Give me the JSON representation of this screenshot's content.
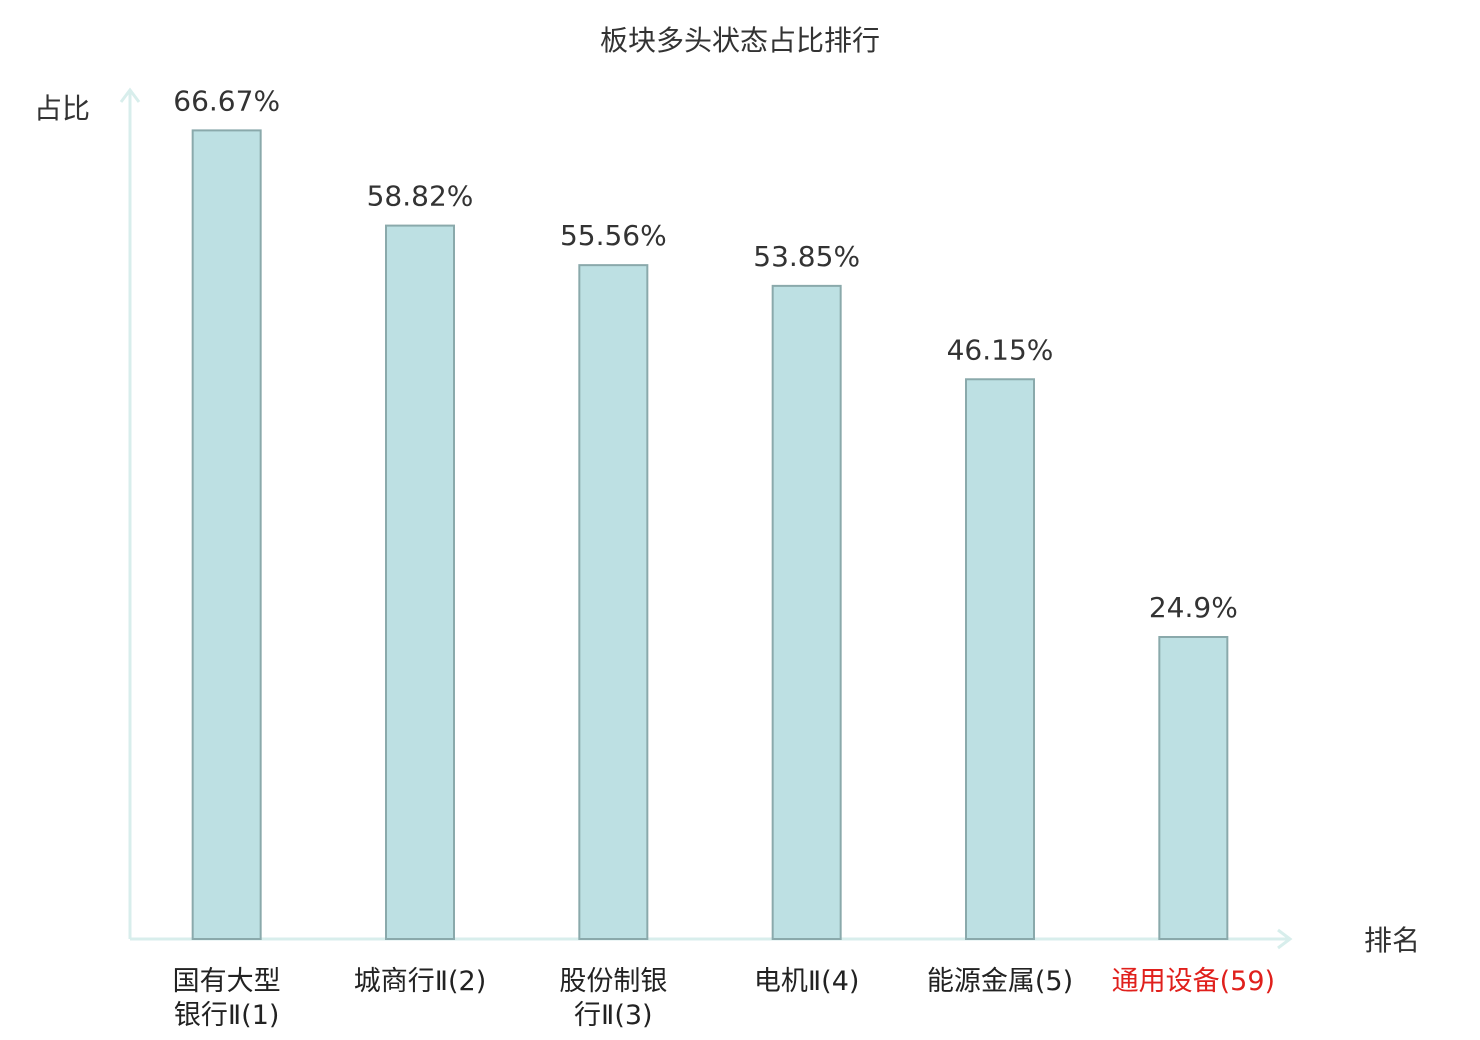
{
  "chart_data": {
    "type": "bar",
    "title": "板块多头状态占比排行",
    "y_label": "占比",
    "x_label": "排名",
    "categories": [
      "国有大型\n银行Ⅱ(1)",
      "城商行Ⅱ(2)",
      "股份制银\n行Ⅱ(3)",
      "电机Ⅱ(4)",
      "能源金属(5)",
      "通用设备(59)"
    ],
    "category_label_colors": [
      "#222222",
      "#222222",
      "#222222",
      "#222222",
      "#222222",
      "#e0201c"
    ],
    "values": [
      66.67,
      58.82,
      55.56,
      53.85,
      46.15,
      24.9
    ],
    "value_labels": [
      "66.67%",
      "58.82%",
      "55.56%",
      "53.85%",
      "46.15%",
      "24.9%"
    ],
    "color": "#bde0e3",
    "edge_color": "#8aa9ab",
    "axis_color": "#d8eeec",
    "ylim": [
      0,
      70
    ]
  }
}
